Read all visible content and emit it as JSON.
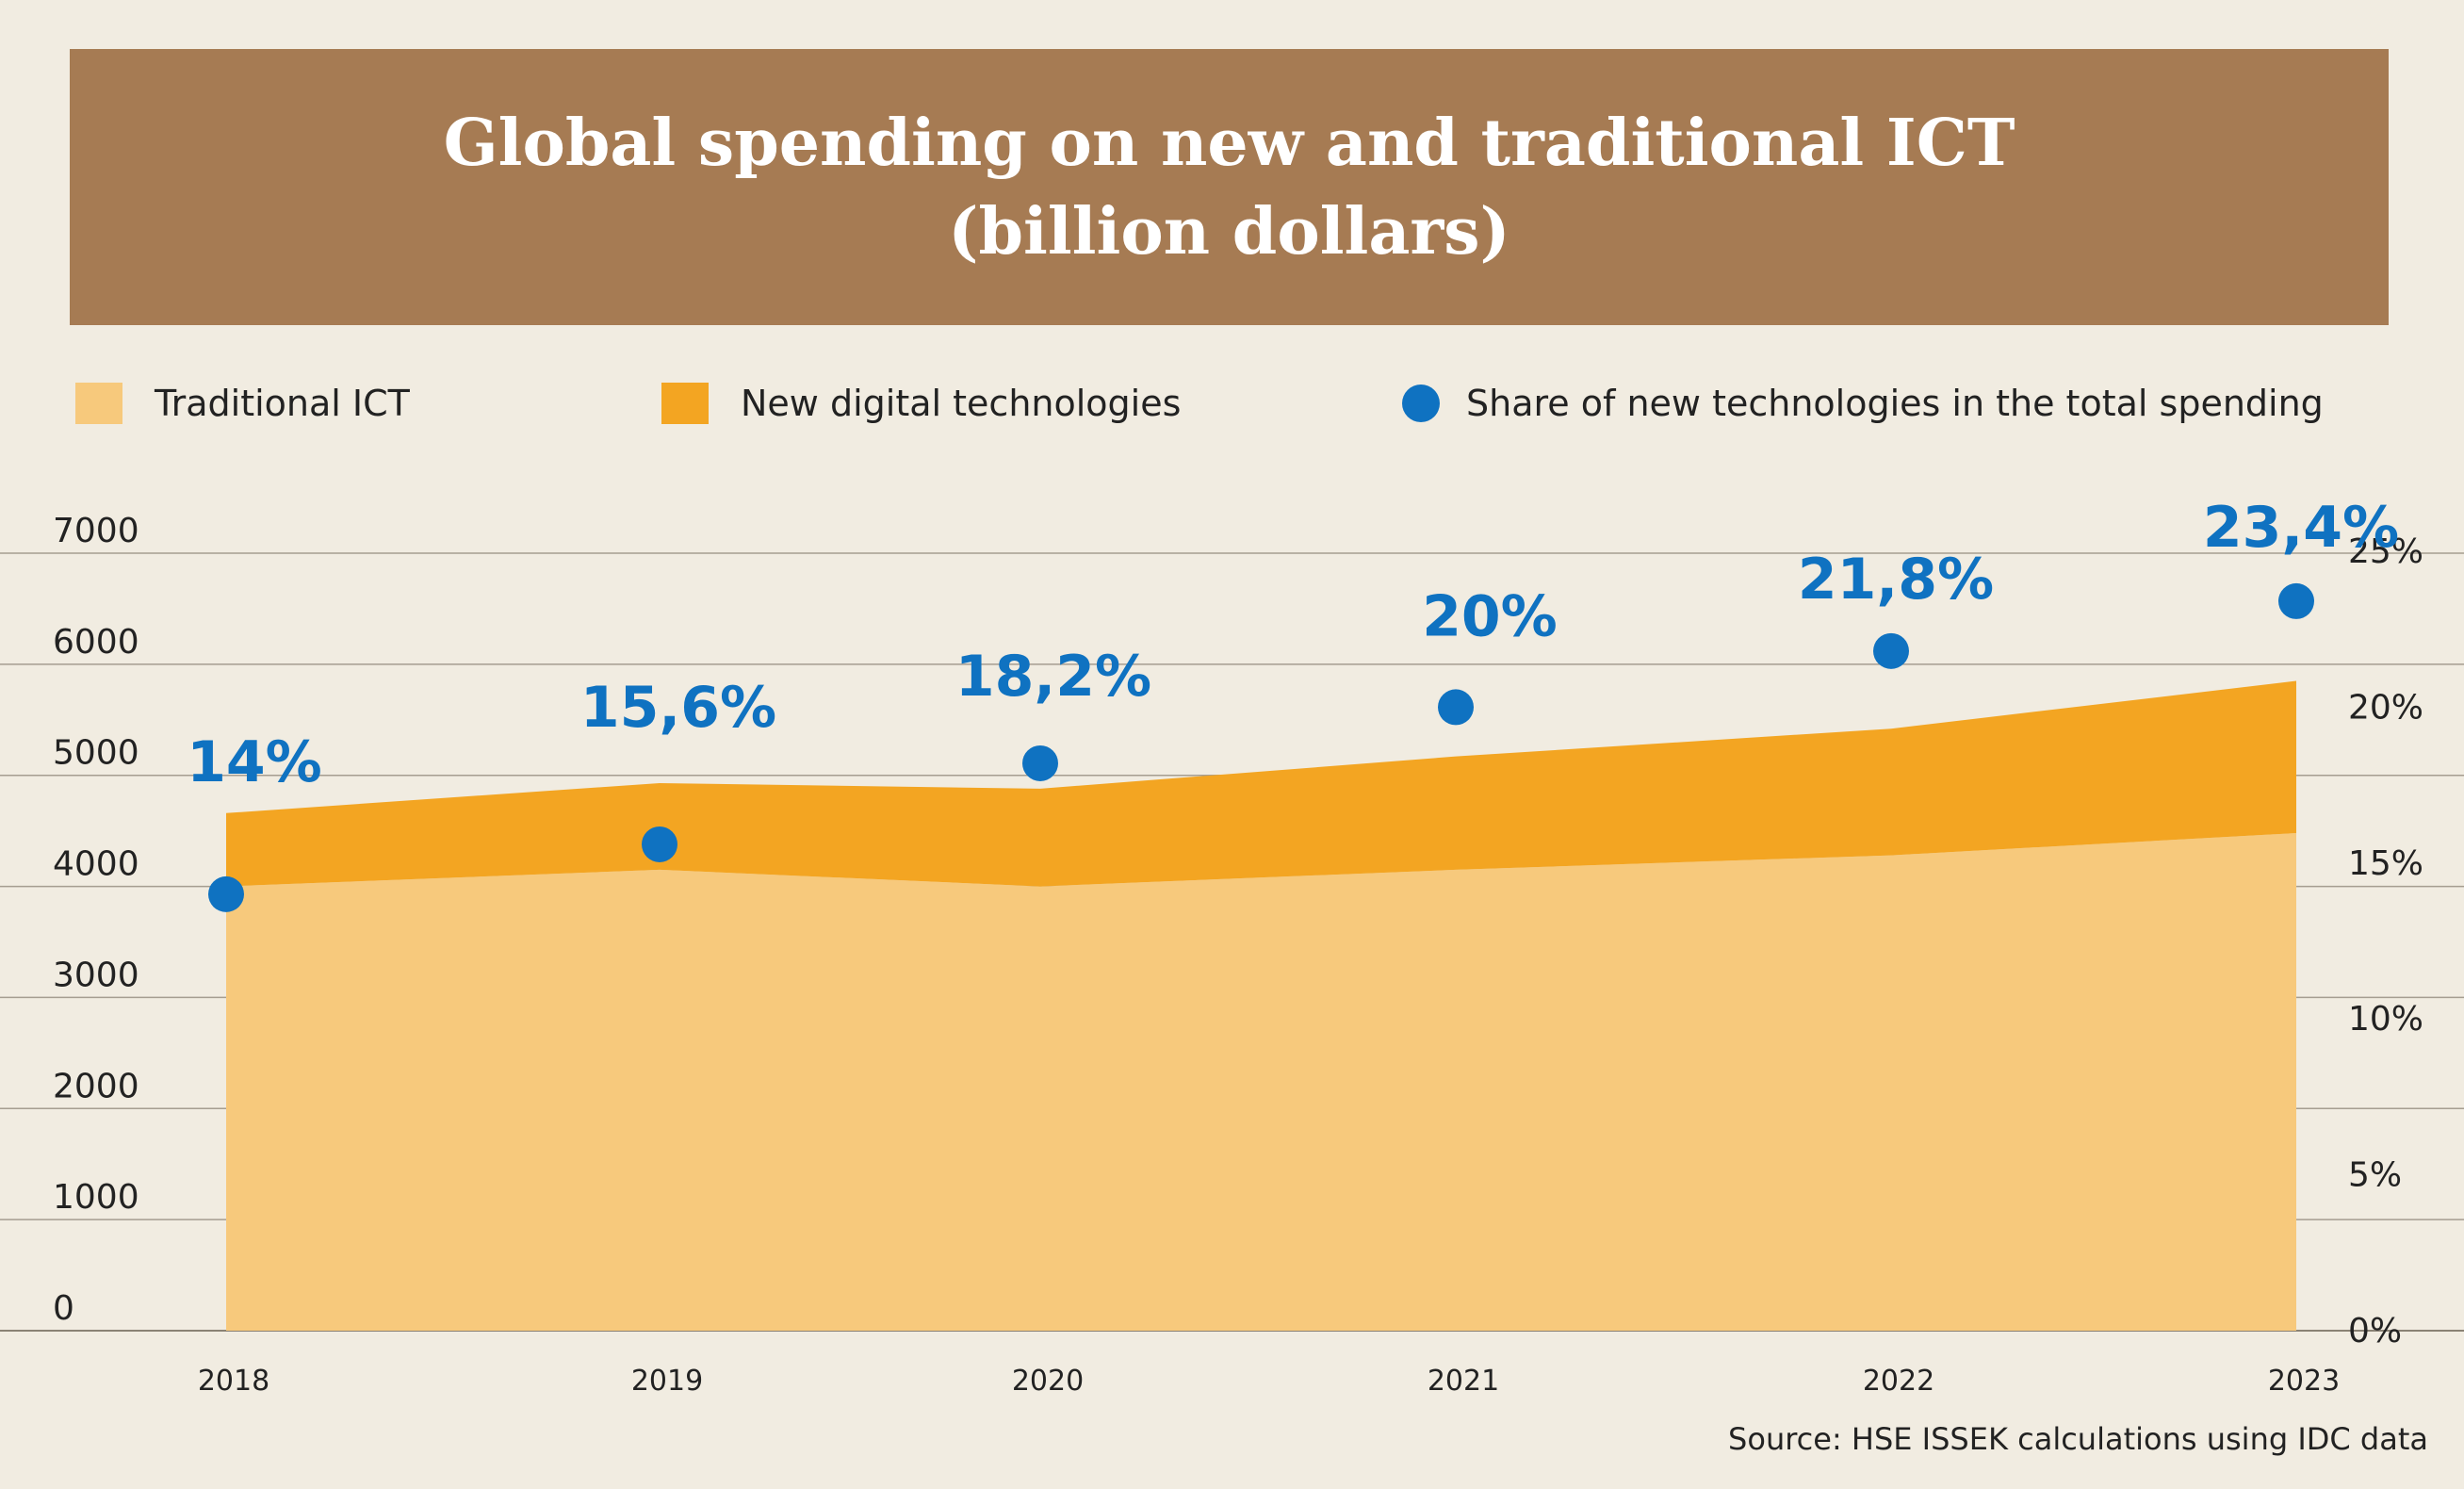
{
  "header": {
    "title_line1": "Global spending on new and traditional ICT",
    "title_line2": "(billion dollars)"
  },
  "legend": [
    {
      "label": "Traditional ICT",
      "color": "#f7c97c",
      "marker": "square"
    },
    {
      "label": "New digital technologies",
      "color": "#f3a522",
      "marker": "square"
    },
    {
      "label": "Share of new technologies in the total spending",
      "color": "#0f72c1",
      "marker": "circle"
    }
  ],
  "chart_data": {
    "type": "area",
    "categories": [
      "2018",
      "2019",
      "2020",
      "2021",
      "2022",
      "2023"
    ],
    "series": [
      {
        "name": "Traditional ICT",
        "type": "area",
        "color": "#f7c97c",
        "values": [
          4000,
          4150,
          4000,
          4150,
          4280,
          4480
        ]
      },
      {
        "name": "New digital technologies",
        "type": "area",
        "stacked": true,
        "color": "#f3a522",
        "values": [
          660,
          780,
          880,
          1020,
          1140,
          1370
        ]
      },
      {
        "name": "Share of new technologies in the total spending",
        "type": "scatter",
        "axis": "right",
        "color": "#0f72c1",
        "values": [
          14,
          15.6,
          18.2,
          20,
          21.8,
          23.4
        ]
      }
    ],
    "data_labels": [
      "14%",
      "15,6%",
      "18,2%",
      "20%",
      "21,8%",
      "23,4%"
    ],
    "y_left": {
      "range": [
        0,
        7000
      ],
      "ticks": [
        "0",
        "1000",
        "2000",
        "3000",
        "4000",
        "5000",
        "6000",
        "7000"
      ]
    },
    "y_right": {
      "range": [
        0,
        25
      ],
      "ticks": [
        "0%",
        "5%",
        "10%",
        "15%",
        "20%",
        "25%"
      ]
    },
    "grid": true
  },
  "source": "Source: HSE ISSEK calculations using IDC data"
}
